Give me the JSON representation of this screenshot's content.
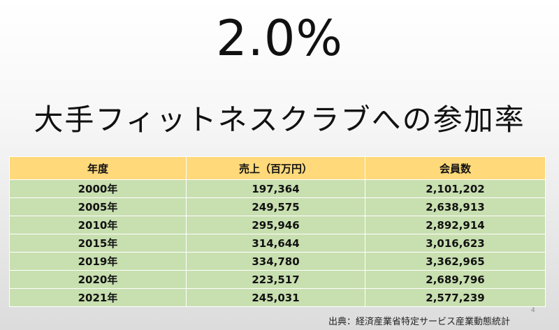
{
  "slide": {
    "headline": "2.0%",
    "subtitle": "大手フィットネスクラブへの参加率",
    "source": "出典：経済産業省特定サービス産業動態統計",
    "page_number": "4"
  },
  "table": {
    "headers": [
      "年度",
      "売上（百万円）",
      "会員数"
    ],
    "rows": [
      [
        "2000年",
        "197,364",
        "2,101,202"
      ],
      [
        "2005年",
        "249,575",
        "2,638,913"
      ],
      [
        "2010年",
        "295,946",
        "2,892,914"
      ],
      [
        "2015年",
        "314,644",
        "3,016,623"
      ],
      [
        "2019年",
        "334,780",
        "3,362,965"
      ],
      [
        "2020年",
        "223,517",
        "2,689,796"
      ],
      [
        "2021年",
        "245,031",
        "2,577,239"
      ]
    ]
  },
  "colors": {
    "header_fill": "#ffd97a",
    "row_fill": "#c8dfb0",
    "text": "#111111"
  }
}
